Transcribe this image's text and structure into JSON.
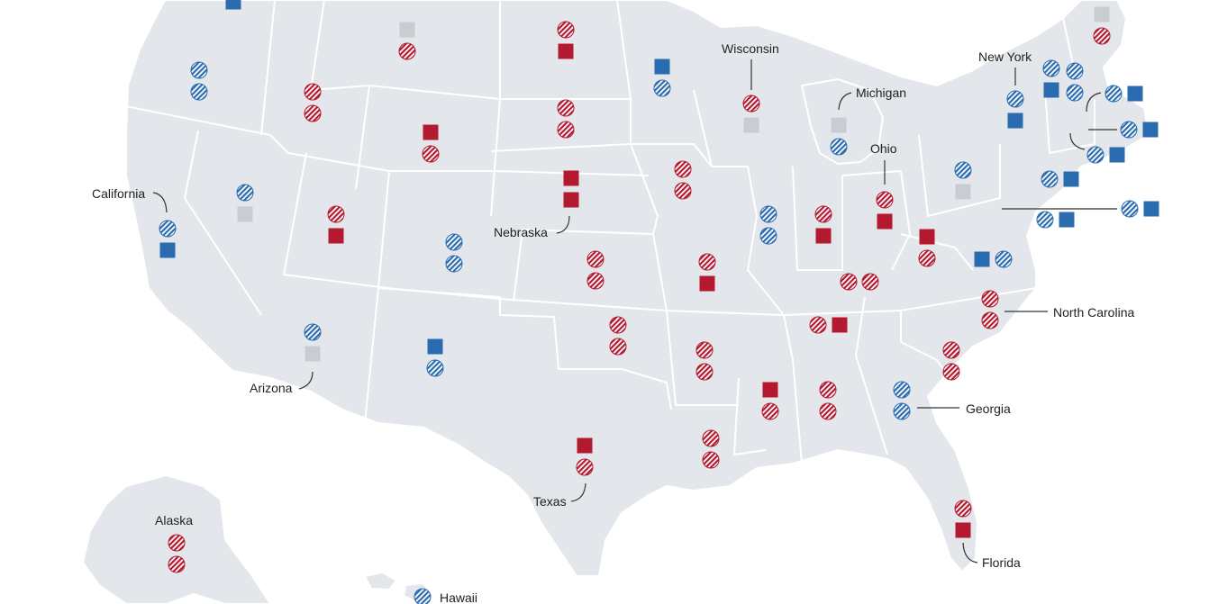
{
  "colors": {
    "blue": "#2b6cb0",
    "red": "#b5192f",
    "gray": "#c9ccd0",
    "land": "#e3e6ea"
  },
  "legend_meaning": {
    "circle_hatched": "circle-hatched-marker",
    "square_solid": "square-solid-marker"
  },
  "labels": {
    "california": "California",
    "arizona": "Arizona",
    "nebraska": "Nebraska",
    "texas": "Texas",
    "wisconsin": "Wisconsin",
    "michigan": "Michigan",
    "ohio": "Ohio",
    "new_york": "New York",
    "north_carolina": "North Carolina",
    "georgia": "Georgia",
    "florida": "Florida",
    "alaska": "Alaska",
    "hawaii": "Hawaii"
  },
  "states": [
    {
      "id": "wa",
      "markers": [
        {
          "shape": "square",
          "color": "blue"
        }
      ]
    },
    {
      "id": "or",
      "markers": [
        {
          "shape": "circle",
          "color": "blue"
        },
        {
          "shape": "circle",
          "color": "blue"
        }
      ]
    },
    {
      "id": "id",
      "markers": [
        {
          "shape": "circle",
          "color": "red"
        },
        {
          "shape": "circle",
          "color": "red"
        }
      ]
    },
    {
      "id": "mt",
      "markers": [
        {
          "shape": "square",
          "color": "gray"
        },
        {
          "shape": "circle",
          "color": "red"
        }
      ]
    },
    {
      "id": "nd",
      "markers": [
        {
          "shape": "circle",
          "color": "red"
        },
        {
          "shape": "square",
          "color": "red"
        }
      ]
    },
    {
      "id": "mn",
      "markers": [
        {
          "shape": "square",
          "color": "blue"
        },
        {
          "shape": "circle",
          "color": "blue"
        }
      ]
    },
    {
      "id": "wi",
      "markers": [
        {
          "shape": "circle",
          "color": "red"
        },
        {
          "shape": "square",
          "color": "gray"
        }
      ]
    },
    {
      "id": "mi",
      "markers": [
        {
          "shape": "square",
          "color": "gray"
        },
        {
          "shape": "circle",
          "color": "blue"
        }
      ]
    },
    {
      "id": "me",
      "markers": [
        {
          "shape": "square",
          "color": "gray"
        },
        {
          "shape": "circle",
          "color": "red"
        }
      ]
    },
    {
      "id": "vt",
      "markers": [
        {
          "shape": "circle",
          "color": "blue"
        },
        {
          "shape": "square",
          "color": "blue"
        }
      ]
    },
    {
      "id": "nh",
      "markers": [
        {
          "shape": "circle",
          "color": "blue"
        },
        {
          "shape": "circle",
          "color": "blue"
        }
      ]
    },
    {
      "id": "ny",
      "markers": [
        {
          "shape": "circle",
          "color": "blue"
        },
        {
          "shape": "square",
          "color": "blue"
        }
      ]
    },
    {
      "id": "ma",
      "markers": [
        {
          "shape": "circle",
          "color": "blue"
        },
        {
          "shape": "square",
          "color": "blue"
        }
      ]
    },
    {
      "id": "ri",
      "markers": [
        {
          "shape": "circle",
          "color": "blue"
        },
        {
          "shape": "square",
          "color": "blue"
        }
      ]
    },
    {
      "id": "ct",
      "markers": [
        {
          "shape": "circle",
          "color": "blue"
        },
        {
          "shape": "square",
          "color": "blue"
        }
      ]
    },
    {
      "id": "sd",
      "markers": [
        {
          "shape": "circle",
          "color": "red"
        },
        {
          "shape": "circle",
          "color": "red"
        }
      ]
    },
    {
      "id": "wy",
      "markers": [
        {
          "shape": "square",
          "color": "red"
        },
        {
          "shape": "circle",
          "color": "red"
        }
      ]
    },
    {
      "id": "ne",
      "markers": [
        {
          "shape": "square",
          "color": "red"
        },
        {
          "shape": "square",
          "color": "red"
        }
      ]
    },
    {
      "id": "ia",
      "markers": [
        {
          "shape": "circle",
          "color": "red"
        },
        {
          "shape": "circle",
          "color": "red"
        }
      ]
    },
    {
      "id": "ca",
      "markers": [
        {
          "shape": "circle",
          "color": "blue"
        },
        {
          "shape": "square",
          "color": "blue"
        }
      ]
    },
    {
      "id": "nv",
      "markers": [
        {
          "shape": "circle",
          "color": "blue"
        },
        {
          "shape": "square",
          "color": "gray"
        }
      ]
    },
    {
      "id": "ut",
      "markers": [
        {
          "shape": "circle",
          "color": "red"
        },
        {
          "shape": "square",
          "color": "red"
        }
      ]
    },
    {
      "id": "co",
      "markers": [
        {
          "shape": "circle",
          "color": "blue"
        },
        {
          "shape": "circle",
          "color": "blue"
        }
      ]
    },
    {
      "id": "ks",
      "markers": [
        {
          "shape": "circle",
          "color": "red"
        },
        {
          "shape": "circle",
          "color": "red"
        }
      ]
    },
    {
      "id": "mo",
      "markers": [
        {
          "shape": "circle",
          "color": "red"
        },
        {
          "shape": "square",
          "color": "red"
        }
      ]
    },
    {
      "id": "il",
      "markers": [
        {
          "shape": "circle",
          "color": "blue"
        },
        {
          "shape": "circle",
          "color": "blue"
        }
      ]
    },
    {
      "id": "in",
      "markers": [
        {
          "shape": "circle",
          "color": "red"
        },
        {
          "shape": "square",
          "color": "red"
        }
      ]
    },
    {
      "id": "oh",
      "markers": [
        {
          "shape": "circle",
          "color": "red"
        },
        {
          "shape": "square",
          "color": "red"
        }
      ]
    },
    {
      "id": "pa",
      "markers": [
        {
          "shape": "circle",
          "color": "blue"
        },
        {
          "shape": "square",
          "color": "gray"
        }
      ]
    },
    {
      "id": "nj",
      "markers": [
        {
          "shape": "circle",
          "color": "blue"
        },
        {
          "shape": "square",
          "color": "blue"
        }
      ]
    },
    {
      "id": "de",
      "markers": [
        {
          "shape": "circle",
          "color": "blue"
        },
        {
          "shape": "square",
          "color": "blue"
        }
      ]
    },
    {
      "id": "md",
      "markers": [
        {
          "shape": "circle",
          "color": "blue"
        },
        {
          "shape": "square",
          "color": "blue"
        }
      ]
    },
    {
      "id": "wv",
      "markers": [
        {
          "shape": "square",
          "color": "red"
        },
        {
          "shape": "circle",
          "color": "red"
        }
      ]
    },
    {
      "id": "va",
      "markers": [
        {
          "shape": "square",
          "color": "blue"
        },
        {
          "shape": "circle",
          "color": "blue"
        }
      ]
    },
    {
      "id": "ky",
      "markers": [
        {
          "shape": "circle",
          "color": "red"
        },
        {
          "shape": "circle",
          "color": "red"
        }
      ]
    },
    {
      "id": "tn",
      "markers": [
        {
          "shape": "circle",
          "color": "red"
        },
        {
          "shape": "square",
          "color": "red"
        }
      ]
    },
    {
      "id": "nc",
      "markers": [
        {
          "shape": "circle",
          "color": "red"
        },
        {
          "shape": "circle",
          "color": "red"
        }
      ]
    },
    {
      "id": "sc",
      "markers": [
        {
          "shape": "circle",
          "color": "red"
        },
        {
          "shape": "circle",
          "color": "red"
        }
      ]
    },
    {
      "id": "ga",
      "markers": [
        {
          "shape": "circle",
          "color": "blue"
        },
        {
          "shape": "circle",
          "color": "blue"
        }
      ]
    },
    {
      "id": "al",
      "markers": [
        {
          "shape": "circle",
          "color": "red"
        },
        {
          "shape": "circle",
          "color": "red"
        }
      ]
    },
    {
      "id": "ms",
      "markers": [
        {
          "shape": "square",
          "color": "red"
        },
        {
          "shape": "circle",
          "color": "red"
        }
      ]
    },
    {
      "id": "ar",
      "markers": [
        {
          "shape": "circle",
          "color": "red"
        },
        {
          "shape": "circle",
          "color": "red"
        }
      ]
    },
    {
      "id": "la",
      "markers": [
        {
          "shape": "circle",
          "color": "red"
        },
        {
          "shape": "circle",
          "color": "red"
        }
      ]
    },
    {
      "id": "ok",
      "markers": [
        {
          "shape": "circle",
          "color": "red"
        },
        {
          "shape": "circle",
          "color": "red"
        }
      ]
    },
    {
      "id": "tx",
      "markers": [
        {
          "shape": "square",
          "color": "red"
        },
        {
          "shape": "circle",
          "color": "red"
        }
      ]
    },
    {
      "id": "nm",
      "markers": [
        {
          "shape": "square",
          "color": "blue"
        },
        {
          "shape": "circle",
          "color": "blue"
        }
      ]
    },
    {
      "id": "az",
      "markers": [
        {
          "shape": "circle",
          "color": "blue"
        },
        {
          "shape": "square",
          "color": "gray"
        }
      ]
    },
    {
      "id": "fl",
      "markers": [
        {
          "shape": "circle",
          "color": "red"
        },
        {
          "shape": "square",
          "color": "red"
        }
      ]
    },
    {
      "id": "ak",
      "markers": [
        {
          "shape": "circle",
          "color": "red"
        },
        {
          "shape": "circle",
          "color": "red"
        }
      ]
    },
    {
      "id": "hi",
      "markers": [
        {
          "shape": "circle",
          "color": "blue"
        }
      ]
    }
  ]
}
